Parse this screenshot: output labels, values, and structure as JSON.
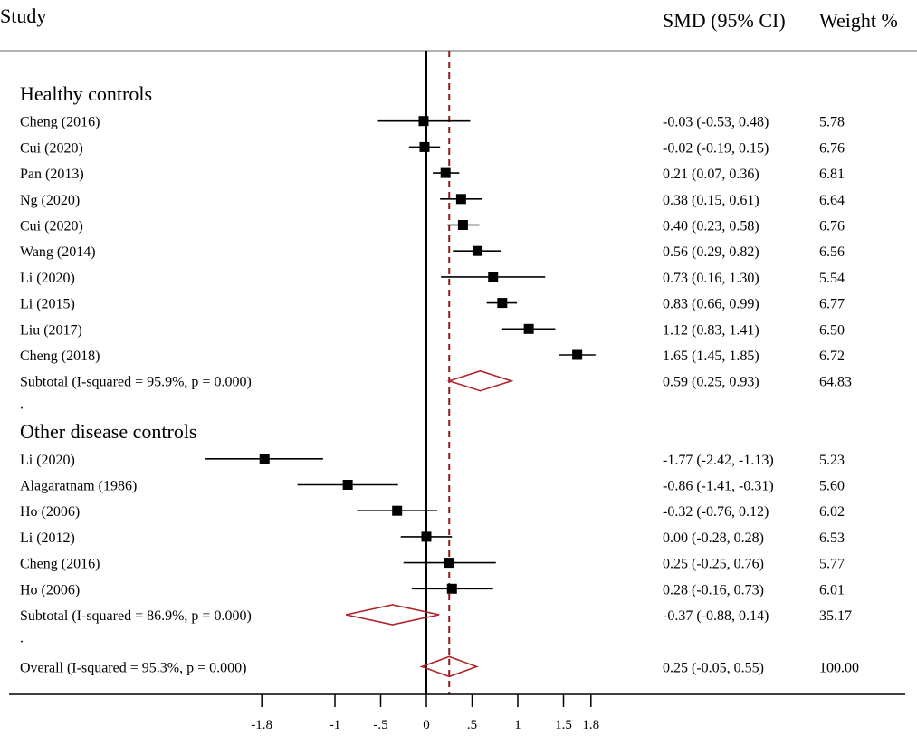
{
  "chart_data": {
    "type": "forest",
    "headers": {
      "study": "Study",
      "smd": "SMD (95% CI)",
      "weight": "Weight %"
    },
    "x_ticks": [
      {
        "value": -1.8,
        "label": "-1.8"
      },
      {
        "value": -1,
        "label": "-1"
      },
      {
        "value": -0.5,
        "label": "-.5"
      },
      {
        "value": 0,
        "label": "0"
      },
      {
        "value": 0.5,
        "label": ".5"
      },
      {
        "value": 1,
        "label": "1"
      },
      {
        "value": 1.5,
        "label": "1.5"
      },
      {
        "value": 1.8,
        "label": "1.8"
      }
    ],
    "null_line": 0,
    "overall_line": 0.25,
    "colors": {
      "marker": "#000000",
      "diamond": "#b0242c",
      "ref_line": "#8b1a1a",
      "separator": "#999999"
    },
    "rows": [
      {
        "kind": "section",
        "label": "Healthy controls"
      },
      {
        "kind": "study",
        "label": "Cheng (2016)",
        "est": -0.03,
        "lo": -0.53,
        "hi": 0.48,
        "ci": "-0.03 (-0.53, 0.48)",
        "weight": "5.78"
      },
      {
        "kind": "study",
        "label": "Cui (2020)",
        "est": -0.02,
        "lo": -0.19,
        "hi": 0.15,
        "ci": "-0.02 (-0.19, 0.15)",
        "weight": "6.76"
      },
      {
        "kind": "study",
        "label": "Pan (2013)",
        "est": 0.21,
        "lo": 0.07,
        "hi": 0.36,
        "ci": "0.21 (0.07, 0.36)",
        "weight": "6.81"
      },
      {
        "kind": "study",
        "label": "Ng (2020)",
        "est": 0.38,
        "lo": 0.15,
        "hi": 0.61,
        "ci": "0.38 (0.15, 0.61)",
        "weight": "6.64"
      },
      {
        "kind": "study",
        "label": "Cui (2020)",
        "est": 0.4,
        "lo": 0.23,
        "hi": 0.58,
        "ci": "0.40 (0.23, 0.58)",
        "weight": "6.76"
      },
      {
        "kind": "study",
        "label": "Wang (2014)",
        "est": 0.56,
        "lo": 0.29,
        "hi": 0.82,
        "ci": "0.56 (0.29, 0.82)",
        "weight": "6.56"
      },
      {
        "kind": "study",
        "label": "Li (2020)",
        "est": 0.73,
        "lo": 0.16,
        "hi": 1.3,
        "ci": "0.73 (0.16, 1.30)",
        "weight": "5.54"
      },
      {
        "kind": "study",
        "label": "Li (2015)",
        "est": 0.83,
        "lo": 0.66,
        "hi": 0.99,
        "ci": "0.83 (0.66, 0.99)",
        "weight": "6.77"
      },
      {
        "kind": "study",
        "label": "Liu (2017)",
        "est": 1.12,
        "lo": 0.83,
        "hi": 1.41,
        "ci": "1.12 (0.83, 1.41)",
        "weight": "6.50"
      },
      {
        "kind": "study",
        "label": "Cheng (2018)",
        "est": 1.65,
        "lo": 1.45,
        "hi": 1.85,
        "ci": "1.65 (1.45, 1.85)",
        "weight": "6.72"
      },
      {
        "kind": "subtotal",
        "label": "Subtotal  (I-squared = 95.9%, p = 0.000)",
        "est": 0.59,
        "lo": 0.25,
        "hi": 0.93,
        "ci": "0.59 (0.25, 0.93)",
        "weight": "64.83"
      },
      {
        "kind": "dot",
        "label": "."
      },
      {
        "kind": "section",
        "label": "Other disease controls"
      },
      {
        "kind": "study",
        "label": "Li (2020)",
        "est": -1.77,
        "lo": -2.42,
        "hi": -1.13,
        "ci": "-1.77 (-2.42, -1.13)",
        "weight": "5.23"
      },
      {
        "kind": "study",
        "label": "Alagaratnam (1986)",
        "est": -0.86,
        "lo": -1.41,
        "hi": -0.31,
        "ci": "-0.86 (-1.41, -0.31)",
        "weight": "5.60"
      },
      {
        "kind": "study",
        "label": "Ho (2006)",
        "est": -0.32,
        "lo": -0.76,
        "hi": 0.12,
        "ci": "-0.32 (-0.76, 0.12)",
        "weight": "6.02"
      },
      {
        "kind": "study",
        "label": "Li (2012)",
        "est": 0.0,
        "lo": -0.28,
        "hi": 0.28,
        "ci": "0.00 (-0.28, 0.28)",
        "weight": "6.53"
      },
      {
        "kind": "study",
        "label": "Cheng (2016)",
        "est": 0.25,
        "lo": -0.25,
        "hi": 0.76,
        "ci": "0.25 (-0.25, 0.76)",
        "weight": "5.77"
      },
      {
        "kind": "study",
        "label": "Ho (2006)",
        "est": 0.28,
        "lo": -0.16,
        "hi": 0.73,
        "ci": "0.28 (-0.16, 0.73)",
        "weight": "6.01"
      },
      {
        "kind": "subtotal",
        "label": "Subtotal  (I-squared = 86.9%, p = 0.000)",
        "est": -0.37,
        "lo": -0.88,
        "hi": 0.14,
        "ci": "-0.37 (-0.88, 0.14)",
        "weight": "35.17"
      },
      {
        "kind": "dot",
        "label": "."
      },
      {
        "kind": "overall",
        "label": "Overall  (I-squared = 95.3%, p = 0.000)",
        "est": 0.25,
        "lo": -0.05,
        "hi": 0.55,
        "ci": "0.25 (-0.05, 0.55)",
        "weight": "100.00"
      }
    ]
  }
}
